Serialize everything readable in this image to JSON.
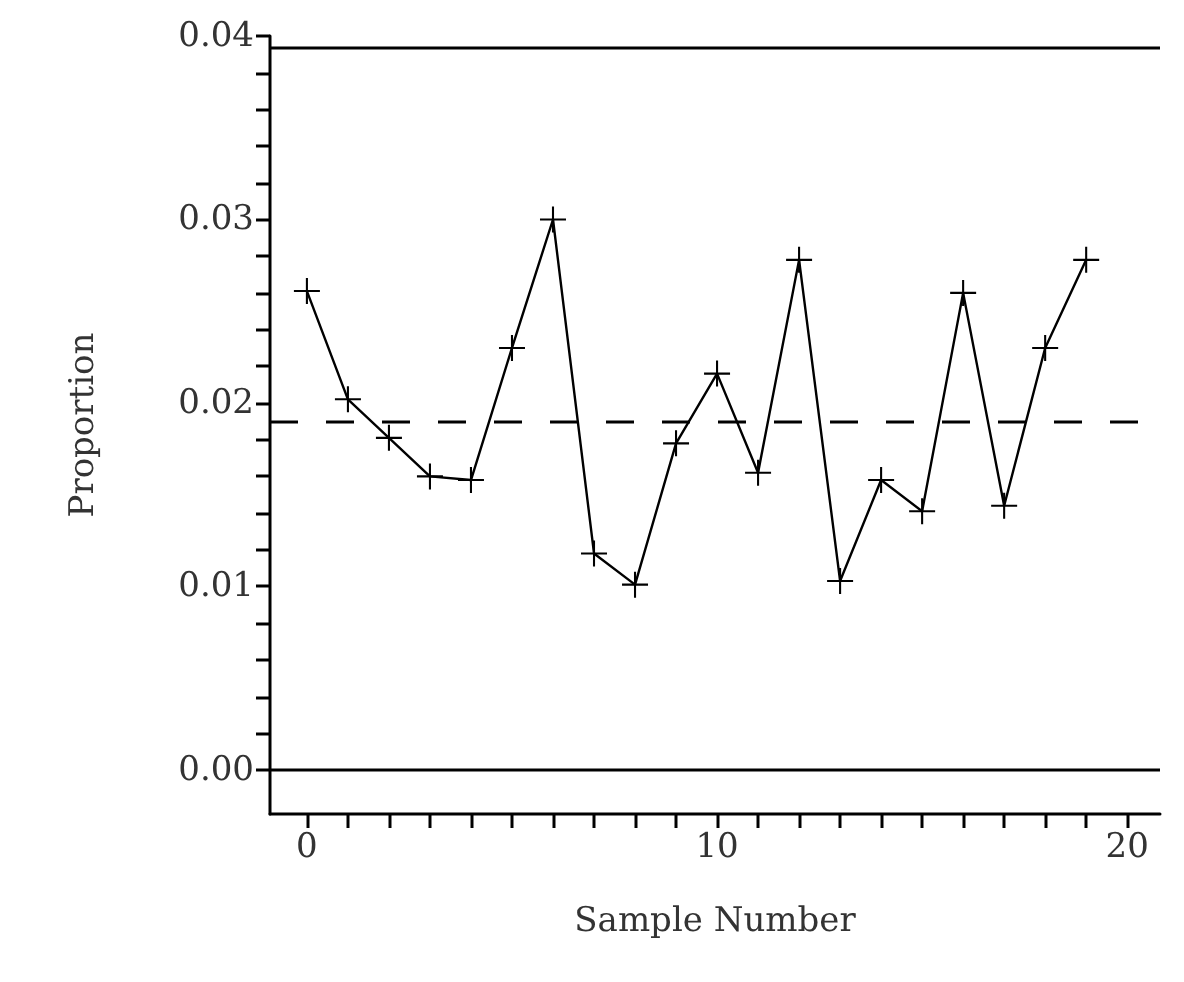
{
  "chart_data": {
    "type": "line",
    "xlabel": "Sample Number",
    "ylabel": "Proportion",
    "x": [
      0,
      1,
      2,
      3,
      4,
      5,
      6,
      7,
      8,
      9,
      10,
      11,
      12,
      13,
      14,
      15,
      16,
      17,
      18,
      19
    ],
    "series": [
      {
        "color": "#000000",
        "values": [
          0.0261,
          0.0202,
          0.0181,
          0.016,
          0.0158,
          0.023,
          0.03,
          0.0118,
          0.0101,
          0.0178,
          0.0216,
          0.0162,
          0.0278,
          0.0103,
          0.0158,
          0.0141,
          0.026,
          0.0144,
          0.023,
          0.0278
        ]
      }
    ],
    "marker": "cross",
    "line_style": "solid",
    "xlim": [
      -0.9,
      20.8
    ],
    "ylim": [
      -0.0024,
      0.04
    ],
    "xticks": [
      0,
      {
        "value": 1,
        "label": null
      },
      {
        "value": 2,
        "label": null
      },
      {
        "value": 3,
        "label": null
      },
      {
        "value": 4,
        "label": null
      },
      {
        "value": 5,
        "label": null
      },
      {
        "value": 6,
        "label": null
      },
      {
        "value": 7,
        "label": null
      },
      {
        "value": 8,
        "label": null
      },
      {
        "value": 9,
        "label": null
      },
      10,
      {
        "value": 11,
        "label": null
      },
      {
        "value": 12,
        "label": null
      },
      {
        "value": 13,
        "label": null
      },
      {
        "value": 14,
        "label": null
      },
      {
        "value": 15,
        "label": null
      },
      {
        "value": 16,
        "label": null
      },
      {
        "value": 17,
        "label": null
      },
      {
        "value": 18,
        "label": null
      },
      {
        "value": 19,
        "label": null
      },
      20
    ],
    "yticks": [
      {
        "value": 0,
        "label": "0.00"
      },
      {
        "value": 0.002,
        "label": null
      },
      {
        "value": 0.004,
        "label": null
      },
      {
        "value": 0.006,
        "label": null
      },
      {
        "value": 0.008,
        "label": null
      },
      {
        "value": 0.01,
        "label": "0.01"
      },
      {
        "value": 0.012,
        "label": null
      },
      {
        "value": 0.014,
        "label": null
      },
      {
        "value": 0.016,
        "label": null
      },
      {
        "value": 0.018,
        "label": null
      },
      {
        "value": 0.02,
        "label": "0.02"
      },
      {
        "value": 0.022,
        "label": null
      },
      {
        "value": 0.024,
        "label": null
      },
      {
        "value": 0.026,
        "label": null
      },
      {
        "value": 0.028,
        "label": null
      },
      {
        "value": 0.03,
        "label": "0.03"
      },
      {
        "value": 0.032,
        "label": null
      },
      {
        "value": 0.034,
        "label": null
      },
      {
        "value": 0.036,
        "label": null
      },
      {
        "value": 0.038,
        "label": null
      },
      {
        "value": 0.04,
        "label": "0.04"
      }
    ],
    "ref_lines": [
      {
        "axis": "y",
        "value": 0.0394,
        "color": "#000000",
        "line_style": "solid"
      },
      {
        "axis": "y",
        "value": 0.019,
        "color": "#000000",
        "line_style": "dashed"
      },
      {
        "axis": "y",
        "value": 0,
        "color": "#000000",
        "line_style": "solid"
      }
    ]
  }
}
